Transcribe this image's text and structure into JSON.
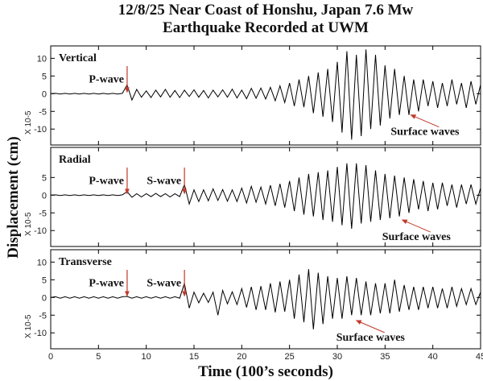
{
  "title_line1": "12/8/25 Near Coast of Honshu, Japan 7.6 Mw",
  "title_line2": "Earthquake Recorded at UWM",
  "y_label": "Displacement (cm)",
  "x_label": "Time (100’s seconds)",
  "chart_data": [
    {
      "type": "line",
      "panel_label": "Vertical",
      "scale_label": "X 10-5",
      "color": "#000000",
      "annotation_color": "#c0392b",
      "xlim": [
        0,
        45
      ],
      "xticks": [
        0,
        5,
        10,
        15,
        20,
        25,
        30,
        35,
        40,
        45
      ],
      "ylim": [
        -14.5,
        13.5
      ],
      "yticks": [
        -10,
        -5,
        0,
        5,
        10
      ],
      "x": [
        0,
        0.5,
        1,
        1.5,
        2,
        2.5,
        3,
        3.5,
        4,
        4.5,
        5,
        5.5,
        6,
        6.5,
        7,
        7.5,
        8,
        8.5,
        9,
        9.5,
        10,
        10.5,
        11,
        11.5,
        12,
        12.5,
        13,
        13.5,
        14,
        14.5,
        15,
        15.5,
        16,
        16.5,
        17,
        17.5,
        18,
        18.5,
        19,
        19.5,
        20,
        20.5,
        21,
        21.5,
        22,
        22.5,
        23,
        23.5,
        24,
        24.5,
        25,
        25.5,
        26,
        26.5,
        27,
        27.5,
        28,
        28.5,
        29,
        29.5,
        30,
        30.5,
        31,
        31.5,
        32,
        32.5,
        33,
        33.5,
        34,
        34.5,
        35,
        35.5,
        36,
        36.5,
        37,
        37.5,
        38,
        38.5,
        39,
        39.5,
        40,
        40.5,
        41,
        41.5,
        42,
        42.5,
        43,
        43.5,
        44,
        44.5,
        45
      ],
      "values": [
        0,
        0.1,
        -0.1,
        0.1,
        -0.1,
        0.1,
        -0.1,
        0.1,
        -0.1,
        0.1,
        -0.1,
        0.1,
        -0.1,
        0.1,
        -0.1,
        0.1,
        2.5,
        -1.8,
        1.2,
        -1,
        0.8,
        -1.1,
        1,
        -0.9,
        1.2,
        -1,
        0.9,
        -1.1,
        1,
        -0.8,
        1.1,
        -1,
        0.9,
        -1.2,
        1,
        -0.9,
        1.1,
        -1,
        1.3,
        -1.2,
        1,
        -1.4,
        1.5,
        -1.3,
        1.6,
        -1.5,
        1.8,
        -2,
        2.2,
        -2.5,
        3,
        -3.5,
        4,
        -3.8,
        5,
        -5.5,
        6,
        -6.5,
        7,
        -8,
        9,
        -11,
        12,
        -13,
        11,
        -12,
        12.5,
        -10,
        11,
        -9,
        8,
        -7,
        7,
        -6,
        5,
        -6,
        4,
        -5,
        4,
        -3.5,
        3.5,
        -4,
        3,
        -3.5,
        4,
        -3,
        3,
        -4,
        3.5,
        -3,
        2.5
      ],
      "annotations": [
        {
          "text": "P-wave",
          "x": 8
        },
        {
          "text": "Surface waves",
          "x": 37.7,
          "y": -6
        }
      ]
    },
    {
      "type": "line",
      "panel_label": "Radial",
      "scale_label": "X 10-5",
      "color": "#000000",
      "annotation_color": "#c0392b",
      "xlim": [
        0,
        45
      ],
      "xticks": [
        0,
        5,
        10,
        15,
        20,
        25,
        30,
        35,
        40,
        45
      ],
      "ylim": [
        -14.5,
        13.5
      ],
      "yticks": [
        -10,
        -5,
        0,
        5
      ],
      "x": [
        0,
        0.5,
        1,
        1.5,
        2,
        2.5,
        3,
        3.5,
        4,
        4.5,
        5,
        5.5,
        6,
        6.5,
        7,
        7.5,
        8,
        8.5,
        9,
        9.5,
        10,
        10.5,
        11,
        11.5,
        12,
        12.5,
        13,
        13.5,
        14,
        14.5,
        15,
        15.5,
        16,
        16.5,
        17,
        17.5,
        18,
        18.5,
        19,
        19.5,
        20,
        20.5,
        21,
        21.5,
        22,
        22.5,
        23,
        23.5,
        24,
        24.5,
        25,
        25.5,
        26,
        26.5,
        27,
        27.5,
        28,
        28.5,
        29,
        29.5,
        30,
        30.5,
        31,
        31.5,
        32,
        32.5,
        33,
        33.5,
        34,
        34.5,
        35,
        35.5,
        36,
        36.5,
        37,
        37.5,
        38,
        38.5,
        39,
        39.5,
        40,
        40.5,
        41,
        41.5,
        42,
        42.5,
        43,
        43.5,
        44,
        44.5,
        45
      ],
      "values": [
        0,
        0.1,
        -0.1,
        0.1,
        -0.1,
        0.1,
        -0.1,
        0.1,
        -0.1,
        0.1,
        -0.1,
        0.1,
        -0.1,
        0.1,
        -0.1,
        0.1,
        1,
        -0.6,
        0.4,
        -0.5,
        0.4,
        -0.4,
        0.5,
        -0.4,
        0.4,
        -0.5,
        0.4,
        -0.4,
        3,
        -2.5,
        1.5,
        -1.8,
        1.5,
        -1.6,
        1.8,
        -1.5,
        1.6,
        -1.7,
        1.5,
        -1.8,
        2,
        -2.2,
        2.5,
        -2,
        2.3,
        -2.5,
        2.8,
        -3,
        3.2,
        -3.5,
        4,
        -4.5,
        5,
        -5.5,
        6,
        -6,
        6.5,
        -7,
        7,
        -7.5,
        8,
        -8.5,
        9,
        -9.5,
        9,
        -8,
        8.5,
        -7.5,
        7,
        -7,
        6,
        -6.5,
        5.5,
        -6,
        5,
        -5,
        4.5,
        -4,
        4,
        -4.5,
        3.5,
        -4,
        3.5,
        -3,
        3,
        -3.5,
        3,
        -2.5,
        3,
        -2.5,
        2
      ],
      "annotations": [
        {
          "text": "P-wave",
          "x": 8
        },
        {
          "text": "S-wave",
          "x": 14
        },
        {
          "text": "Surface waves",
          "x": 36.8,
          "y": -7
        }
      ]
    },
    {
      "type": "line",
      "panel_label": "Transverse",
      "scale_label": "X 10-5",
      "color": "#000000",
      "annotation_color": "#c0392b",
      "xlim": [
        0,
        45
      ],
      "xticks": [
        0,
        5,
        10,
        15,
        20,
        25,
        30,
        35,
        40,
        45
      ],
      "ylim": [
        -14.5,
        13.5
      ],
      "yticks": [
        -10,
        -5,
        0,
        5,
        10
      ],
      "x": [
        0,
        0.5,
        1,
        1.5,
        2,
        2.5,
        3,
        3.5,
        4,
        4.5,
        5,
        5.5,
        6,
        6.5,
        7,
        7.5,
        8,
        8.5,
        9,
        9.5,
        10,
        10.5,
        11,
        11.5,
        12,
        12.5,
        13,
        13.5,
        14,
        14.5,
        15,
        15.5,
        16,
        16.5,
        17,
        17.5,
        18,
        18.5,
        19,
        19.5,
        20,
        20.5,
        21,
        21.5,
        22,
        22.5,
        23,
        23.5,
        24,
        24.5,
        25,
        25.5,
        26,
        26.5,
        27,
        27.5,
        28,
        28.5,
        29,
        29.5,
        30,
        30.5,
        31,
        31.5,
        32,
        32.5,
        33,
        33.5,
        34,
        34.5,
        35,
        35.5,
        36,
        36.5,
        37,
        37.5,
        38,
        38.5,
        39,
        39.5,
        40,
        40.5,
        41,
        41.5,
        42,
        42.5,
        43,
        43.5,
        44,
        44.5,
        45
      ],
      "values": [
        0,
        0.2,
        -0.2,
        0.2,
        -0.2,
        0.2,
        -0.2,
        0.2,
        -0.2,
        0.2,
        -0.2,
        0.2,
        -0.2,
        0.2,
        -0.2,
        0.2,
        0.3,
        -0.2,
        0.2,
        -0.2,
        0.2,
        -0.2,
        0.2,
        -0.2,
        0.2,
        -0.2,
        0.2,
        -0.2,
        4,
        -3,
        1.5,
        -1.5,
        1.2,
        -1.4,
        1.5,
        -5,
        2,
        -1.8,
        1.6,
        -2,
        2.5,
        -2.8,
        3,
        -3.5,
        3.2,
        -3.5,
        4,
        -4.2,
        4.5,
        -4,
        5,
        -6,
        6.5,
        -7,
        8,
        -9,
        7,
        -7.5,
        6,
        -6,
        5.5,
        -6,
        6,
        -5,
        5.5,
        -5,
        4.5,
        -5,
        4,
        -4.5,
        4,
        -4.5,
        5,
        -4,
        3.5,
        -3.5,
        3,
        -3.5,
        3,
        -3,
        3,
        -3,
        2.5,
        -3,
        3,
        -2.5,
        2.5,
        -2,
        2.5,
        -2,
        1.5
      ],
      "annotations": [
        {
          "text": "P-wave",
          "x": 8
        },
        {
          "text": "S-wave",
          "x": 14
        },
        {
          "text": "Surface waves",
          "x": 32,
          "y": -6.5
        }
      ]
    }
  ]
}
